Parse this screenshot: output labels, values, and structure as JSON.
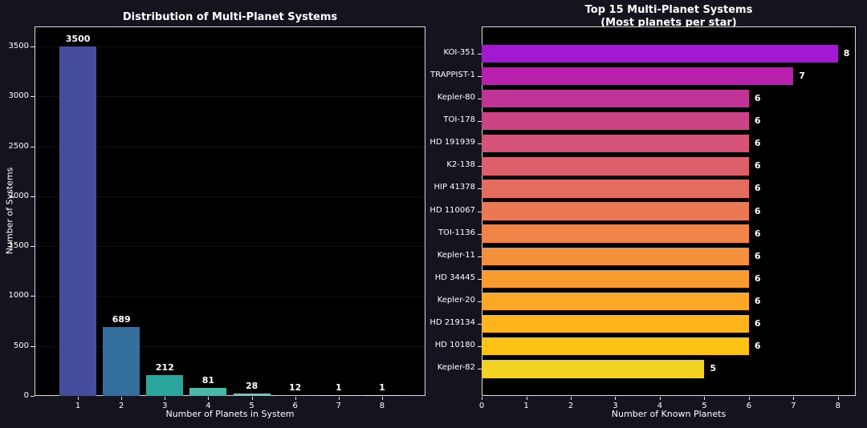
{
  "figure": {
    "background": "#14141f",
    "plot_background": "#000000",
    "spine_color": "#d9d9d9",
    "text_color": "#ffffff"
  },
  "chart_data": [
    {
      "type": "bar",
      "title": "Distribution of Multi-Planet Systems",
      "xlabel": "Number of Planets in System",
      "ylabel": "Number of Systems",
      "categories": [
        "1",
        "2",
        "3",
        "4",
        "5",
        "6",
        "7",
        "8"
      ],
      "values": [
        3500,
        689,
        212,
        81,
        28,
        12,
        1,
        1
      ],
      "value_labels": [
        "3500",
        "689",
        "212",
        "81",
        "28",
        "12",
        "1",
        "1"
      ],
      "bar_colors": [
        "#444e9d",
        "#33709d",
        "#2ba69d",
        "#49b8ab",
        "#74cabe",
        "#9cd9d0",
        "#c2e8e0",
        "#e0f4ee"
      ],
      "yticks": [
        0,
        500,
        1000,
        1500,
        2000,
        2500,
        3000,
        3500
      ],
      "ylim": [
        0,
        3700
      ],
      "grid": "faint-horizontal",
      "legend": "none"
    },
    {
      "type": "barh",
      "title": "Top 15 Multi-Planet Systems",
      "subtitle": "(Most planets per star)",
      "xlabel": "Number of Known Planets",
      "categories": [
        "KOI-351",
        "TRAPPIST-1",
        "Kepler-80",
        "TOI-178",
        "HD 191939",
        "K2-138",
        "HIP 41378",
        "HD 110067",
        "TOI-1136",
        "Kepler-11",
        "HD 34445",
        "Kepler-20",
        "HD 219134",
        "HD 10180",
        "Kepler-82"
      ],
      "values": [
        8,
        7,
        6,
        6,
        6,
        6,
        6,
        6,
        6,
        6,
        6,
        6,
        6,
        6,
        5
      ],
      "value_labels": [
        "8",
        "7",
        "6",
        "6",
        "6",
        "6",
        "6",
        "6",
        "6",
        "6",
        "6",
        "6",
        "6",
        "6",
        "5"
      ],
      "bar_colors": [
        "#a11ad1",
        "#b620ad",
        "#c23397",
        "#cc4386",
        "#d55278",
        "#dd5f6b",
        "#e46c5e",
        "#ea7852",
        "#f08447",
        "#f4903b",
        "#f89c30",
        "#fba825",
        "#fdb51b",
        "#fdc312",
        "#f3d321"
      ],
      "xticks": [
        0,
        1,
        2,
        3,
        4,
        5,
        6,
        7,
        8
      ],
      "xlim": [
        0,
        8.4
      ],
      "grid": "none",
      "legend": "none"
    }
  ]
}
